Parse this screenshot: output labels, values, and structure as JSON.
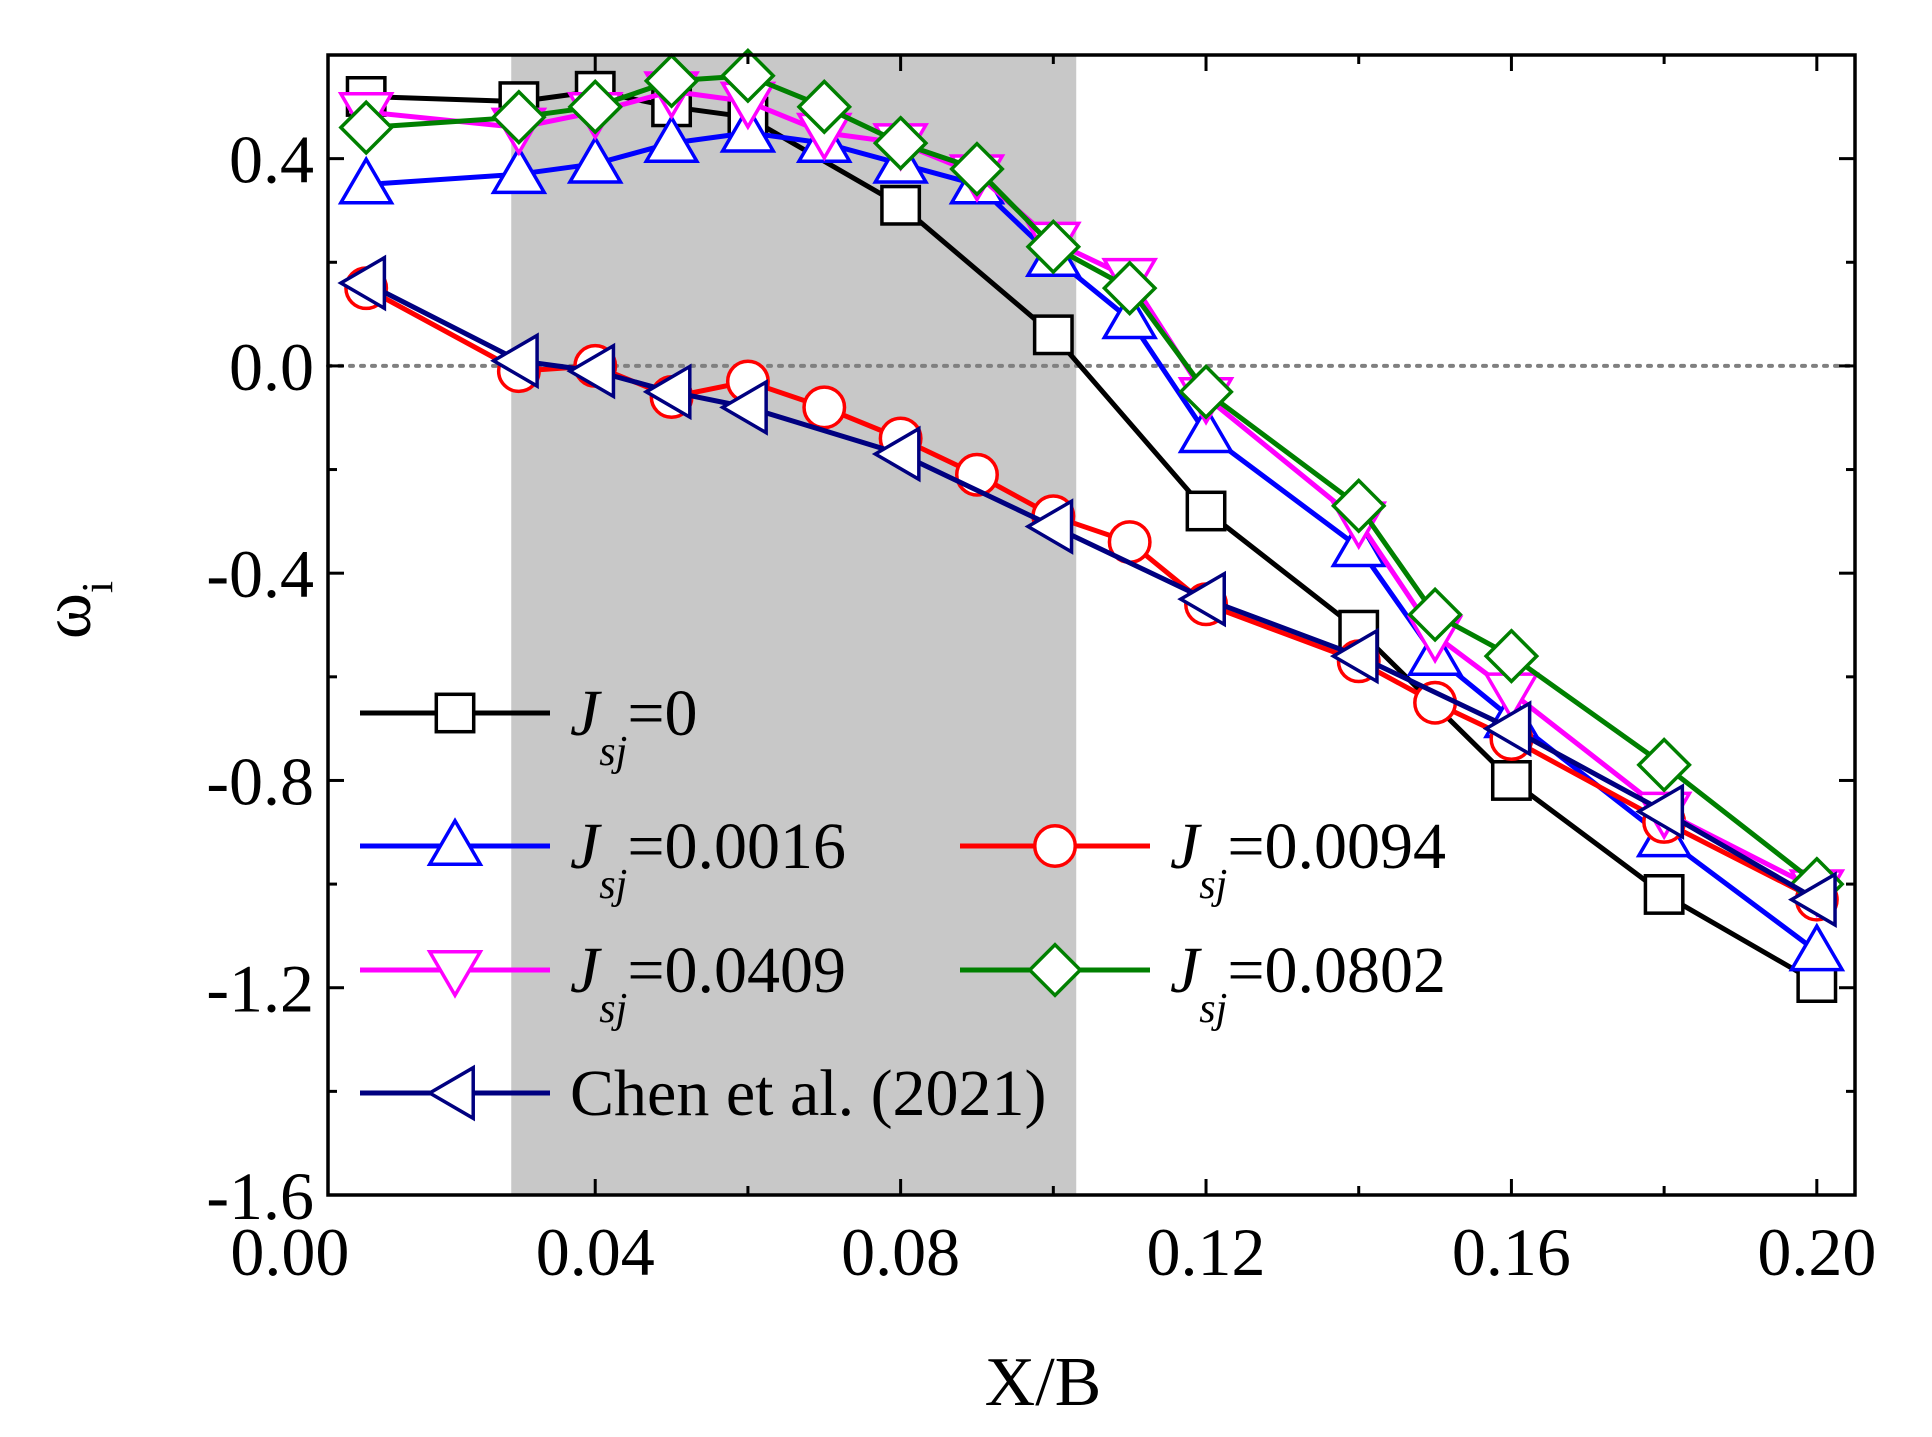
{
  "chart_data": {
    "type": "line",
    "title": "",
    "xlabel": "X/B",
    "ylabel": {
      "main": "ω",
      "sub": "i"
    },
    "xlim": [
      0.005,
      0.205
    ],
    "ylim": [
      -1.6,
      0.6
    ],
    "xticks": [
      0.0,
      0.04,
      0.08,
      0.12,
      0.16,
      0.2
    ],
    "xtick_labels": [
      "0.00",
      "0.04",
      "0.08",
      "0.12",
      "0.16",
      "0.20"
    ],
    "yticks": [
      -1.6,
      -1.2,
      -0.8,
      -0.4,
      0.0,
      0.4
    ],
    "ytick_labels": [
      "-1.6",
      "-1.2",
      "-0.8",
      "-0.4",
      "0.0",
      "0.4"
    ],
    "shaded_region": {
      "x_start": 0.029,
      "x_end": 0.103,
      "color": "#c8c8c8"
    },
    "reference_line": {
      "y": 0.0,
      "style": "dotted",
      "color": "#808080"
    },
    "legend_position": "bottom-left",
    "series": [
      {
        "name": "J_sj=0",
        "legend": {
          "main": "J",
          "sub": "sj",
          "rest": "=0"
        },
        "color": "#000000",
        "marker": "square",
        "marker_fill": "#ffffff",
        "marker_stroke": "#000000",
        "x": [
          0.01,
          0.03,
          0.04,
          0.05,
          0.06,
          0.08,
          0.1,
          0.12,
          0.14,
          0.16,
          0.18,
          0.2
        ],
        "y": [
          0.52,
          0.51,
          0.53,
          0.5,
          0.48,
          0.31,
          0.06,
          -0.28,
          -0.51,
          -0.8,
          -1.02,
          -1.19
        ]
      },
      {
        "name": "J_sj=0.0016",
        "legend": {
          "main": "J",
          "sub": "sj",
          "rest": "=0.0016"
        },
        "color": "#0000ff",
        "marker": "triangle-up",
        "marker_fill": "#ffffff",
        "marker_stroke": "#0000ff",
        "x": [
          0.01,
          0.03,
          0.04,
          0.05,
          0.06,
          0.07,
          0.08,
          0.09,
          0.1,
          0.11,
          0.12,
          0.14,
          0.15,
          0.16,
          0.18,
          0.2
        ],
        "y": [
          0.35,
          0.37,
          0.39,
          0.43,
          0.45,
          0.43,
          0.39,
          0.35,
          0.21,
          0.09,
          -0.13,
          -0.35,
          -0.56,
          -0.68,
          -0.91,
          -1.13
        ]
      },
      {
        "name": "J_sj=0.0094",
        "legend": {
          "main": "J",
          "sub": "sj",
          "rest": "=0.0094"
        },
        "color": "#ff0000",
        "marker": "circle",
        "marker_fill": "#ffffff",
        "marker_stroke": "#ff0000",
        "x": [
          0.01,
          0.03,
          0.04,
          0.05,
          0.06,
          0.07,
          0.08,
          0.09,
          0.1,
          0.11,
          0.12,
          0.14,
          0.15,
          0.16,
          0.18,
          0.2
        ],
        "y": [
          0.15,
          -0.01,
          0.0,
          -0.06,
          -0.03,
          -0.08,
          -0.14,
          -0.21,
          -0.29,
          -0.34,
          -0.46,
          -0.57,
          -0.65,
          -0.72,
          -0.88,
          -1.03
        ]
      },
      {
        "name": "J_sj=0.0409",
        "legend": {
          "main": "J",
          "sub": "sj",
          "rest": "=0.0409"
        },
        "color": "#ff00ff",
        "marker": "triangle-down",
        "marker_fill": "#ffffff",
        "marker_stroke": "#ff00ff",
        "x": [
          0.01,
          0.03,
          0.04,
          0.05,
          0.06,
          0.07,
          0.08,
          0.09,
          0.1,
          0.11,
          0.12,
          0.14,
          0.15,
          0.16,
          0.18,
          0.2
        ],
        "y": [
          0.49,
          0.46,
          0.49,
          0.53,
          0.51,
          0.45,
          0.43,
          0.37,
          0.24,
          0.17,
          -0.06,
          -0.3,
          -0.52,
          -0.63,
          -0.86,
          -1.01
        ]
      },
      {
        "name": "J_sj=0.0802",
        "legend": {
          "main": "J",
          "sub": "sj",
          "rest": "=0.0802"
        },
        "color": "#008000",
        "marker": "diamond",
        "marker_fill": "#ffffff",
        "marker_stroke": "#008000",
        "x": [
          0.01,
          0.03,
          0.04,
          0.05,
          0.06,
          0.07,
          0.08,
          0.09,
          0.1,
          0.11,
          0.12,
          0.14,
          0.15,
          0.16,
          0.18,
          0.2
        ],
        "y": [
          0.46,
          0.48,
          0.5,
          0.55,
          0.56,
          0.5,
          0.43,
          0.38,
          0.23,
          0.15,
          -0.05,
          -0.27,
          -0.48,
          -0.56,
          -0.77,
          -1.0
        ]
      },
      {
        "name": "Chen et al. (2021)",
        "legend": {
          "main": "Chen et al. (2021)",
          "sub": "",
          "rest": ""
        },
        "color": "#000080",
        "marker": "triangle-left",
        "marker_fill": "#ffffff",
        "marker_stroke": "#000080",
        "x": [
          0.01,
          0.03,
          0.04,
          0.05,
          0.06,
          0.08,
          0.1,
          0.12,
          0.14,
          0.16,
          0.18,
          0.2
        ],
        "y": [
          0.16,
          0.01,
          -0.01,
          -0.05,
          -0.08,
          -0.17,
          -0.31,
          -0.45,
          -0.56,
          -0.7,
          -0.86,
          -1.03
        ]
      }
    ]
  }
}
